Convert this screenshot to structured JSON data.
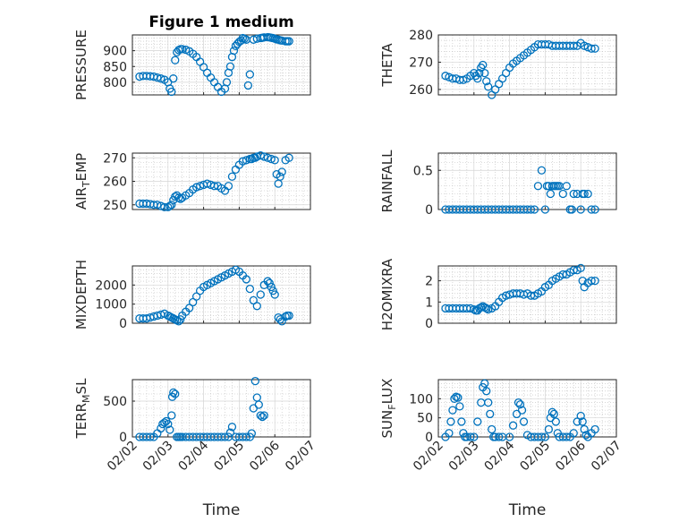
{
  "chart_data": [
    {
      "type": "scatter",
      "id": "pressure",
      "title": "Figure 1 medium",
      "ylabel": "PRESSURE",
      "xlabel": "",
      "xlim": [
        0,
        5
      ],
      "ylim": [
        760,
        950
      ],
      "yticks": [
        800,
        850,
        900
      ],
      "color": "#0072BD",
      "x": [
        0.2,
        0.3,
        0.4,
        0.5,
        0.6,
        0.7,
        0.8,
        0.9,
        1.0,
        1.05,
        1.1,
        1.15,
        1.2,
        1.25,
        1.3,
        1.35,
        1.4,
        1.5,
        1.6,
        1.7,
        1.8,
        1.9,
        2.0,
        2.1,
        2.2,
        2.3,
        2.4,
        2.5,
        2.6,
        2.65,
        2.7,
        2.75,
        2.8,
        2.85,
        2.9,
        2.95,
        3.0,
        3.05,
        3.1,
        3.15,
        3.2,
        3.25,
        3.3,
        3.4,
        3.5,
        3.6,
        3.65,
        3.7,
        3.8,
        3.85,
        3.9,
        3.95,
        4.0,
        4.05,
        4.1,
        4.15,
        4.2,
        4.3,
        4.35,
        4.4
      ],
      "y": [
        818,
        820,
        820,
        819,
        818,
        815,
        812,
        808,
        800,
        780,
        770,
        812,
        870,
        895,
        902,
        905,
        905,
        903,
        898,
        890,
        880,
        865,
        848,
        830,
        815,
        800,
        785,
        770,
        780,
        800,
        830,
        850,
        880,
        900,
        915,
        922,
        928,
        932,
        940,
        938,
        935,
        790,
        825,
        935,
        938,
        940,
        941,
        942,
        943,
        942,
        941,
        940,
        938,
        936,
        935,
        933,
        932,
        930,
        930,
        930
      ]
    },
    {
      "type": "scatter",
      "id": "theta",
      "ylabel": "THETA",
      "xlabel": "",
      "xlim": [
        0,
        5
      ],
      "ylim": [
        258,
        280
      ],
      "yticks": [
        260,
        270,
        280
      ],
      "color": "#0072BD",
      "x": [
        0.2,
        0.3,
        0.4,
        0.5,
        0.6,
        0.7,
        0.8,
        0.9,
        1.0,
        1.05,
        1.1,
        1.15,
        1.2,
        1.25,
        1.3,
        1.35,
        1.4,
        1.5,
        1.6,
        1.7,
        1.8,
        1.9,
        2.0,
        2.1,
        2.2,
        2.3,
        2.4,
        2.5,
        2.6,
        2.7,
        2.8,
        2.9,
        3.0,
        3.1,
        3.2,
        3.3,
        3.4,
        3.5,
        3.6,
        3.7,
        3.8,
        3.9,
        4.0,
        4.1,
        4.2,
        4.3,
        4.4
      ],
      "y": [
        265,
        264.5,
        264,
        264,
        263.5,
        263.5,
        264,
        265,
        266,
        265,
        264,
        266,
        268,
        269,
        266,
        263,
        261,
        258,
        260,
        262,
        264,
        266,
        268,
        269.5,
        270.5,
        271.5,
        272.5,
        273.5,
        274.5,
        275.5,
        276.5,
        276.5,
        276.5,
        276.5,
        276,
        276,
        276,
        276,
        276,
        276,
        276,
        276,
        277,
        276,
        275.5,
        275,
        275
      ]
    },
    {
      "type": "scatter",
      "id": "air_temp",
      "ylabel": "AIR_TEMP",
      "xlabel": "",
      "xlim": [
        0,
        5
      ],
      "ylim": [
        248,
        272
      ],
      "yticks": [
        250,
        260,
        270
      ],
      "color": "#0072BD",
      "x": [
        0.2,
        0.3,
        0.4,
        0.5,
        0.6,
        0.7,
        0.8,
        0.9,
        1.0,
        1.05,
        1.1,
        1.15,
        1.2,
        1.25,
        1.3,
        1.35,
        1.4,
        1.5,
        1.6,
        1.7,
        1.8,
        1.9,
        2.0,
        2.1,
        2.2,
        2.3,
        2.4,
        2.5,
        2.6,
        2.7,
        2.8,
        2.9,
        3.0,
        3.1,
        3.2,
        3.3,
        3.35,
        3.4,
        3.45,
        3.5,
        3.6,
        3.7,
        3.8,
        3.9,
        4.0,
        4.05,
        4.1,
        4.15,
        4.2,
        4.3,
        4.4
      ],
      "y": [
        250.5,
        250.5,
        250.5,
        250.3,
        250,
        250,
        249.5,
        249,
        249,
        249.5,
        250,
        252,
        253.5,
        254,
        253,
        252.5,
        253,
        254,
        255,
        256.5,
        257.5,
        258,
        258.5,
        259,
        258.5,
        258,
        258,
        257,
        256,
        258,
        262,
        265,
        267,
        268.5,
        269,
        269.5,
        269.5,
        270,
        270,
        270.5,
        271,
        270.5,
        270,
        269.5,
        269,
        263,
        259,
        262,
        264,
        269,
        270
      ]
    },
    {
      "type": "scatter",
      "id": "rainfall",
      "ylabel": "RAINFALL",
      "xlabel": "",
      "xlim": [
        0,
        5
      ],
      "ylim": [
        0,
        0.72
      ],
      "yticks": [
        0,
        0.5
      ],
      "color": "#0072BD",
      "x": [
        0.2,
        0.3,
        0.4,
        0.5,
        0.6,
        0.7,
        0.8,
        0.9,
        1.0,
        1.1,
        1.2,
        1.3,
        1.4,
        1.5,
        1.6,
        1.7,
        1.8,
        1.9,
        2.0,
        2.1,
        2.2,
        2.3,
        2.4,
        2.5,
        2.6,
        2.7,
        2.8,
        2.9,
        3.0,
        3.05,
        3.1,
        3.15,
        3.2,
        3.25,
        3.3,
        3.35,
        3.4,
        3.5,
        3.6,
        3.7,
        3.75,
        3.8,
        3.9,
        4.0,
        4.05,
        4.1,
        4.2,
        4.3,
        4.4
      ],
      "y": [
        0,
        0,
        0,
        0,
        0,
        0,
        0,
        0,
        0,
        0,
        0,
        0,
        0,
        0,
        0,
        0,
        0,
        0,
        0,
        0,
        0,
        0,
        0,
        0,
        0,
        0,
        0.3,
        0.5,
        0,
        0.3,
        0.3,
        0.2,
        0.3,
        0.3,
        0.3,
        0.3,
        0.3,
        0.2,
        0.3,
        0,
        0,
        0.2,
        0.2,
        0,
        0.2,
        0.2,
        0.2,
        0,
        0
      ]
    },
    {
      "type": "scatter",
      "id": "mixdepth",
      "ylabel": "MIXDEPTH",
      "xlabel": "",
      "xlim": [
        0,
        5
      ],
      "ylim": [
        0,
        3000
      ],
      "yticks": [
        0,
        1000,
        2000
      ],
      "color": "#0072BD",
      "x": [
        0.2,
        0.3,
        0.4,
        0.5,
        0.6,
        0.7,
        0.8,
        0.9,
        1.0,
        1.05,
        1.1,
        1.15,
        1.2,
        1.25,
        1.3,
        1.35,
        1.4,
        1.5,
        1.6,
        1.7,
        1.8,
        1.9,
        2.0,
        2.1,
        2.2,
        2.3,
        2.4,
        2.5,
        2.6,
        2.7,
        2.8,
        2.9,
        3.0,
        3.1,
        3.2,
        3.3,
        3.4,
        3.5,
        3.6,
        3.7,
        3.8,
        3.85,
        3.9,
        3.95,
        4.0,
        4.1,
        4.15,
        4.2,
        4.3,
        4.35,
        4.4
      ],
      "y": [
        250,
        250,
        250,
        300,
        350,
        400,
        450,
        500,
        400,
        350,
        300,
        250,
        200,
        150,
        100,
        200,
        400,
        600,
        800,
        1100,
        1400,
        1700,
        1900,
        2000,
        2100,
        2200,
        2300,
        2400,
        2500,
        2600,
        2700,
        2800,
        2700,
        2500,
        2300,
        1800,
        1200,
        900,
        1500,
        2000,
        2200,
        2100,
        1900,
        1700,
        1500,
        300,
        200,
        100,
        350,
        400,
        400
      ]
    },
    {
      "type": "scatter",
      "id": "h2omixra",
      "ylabel": "H2OMIXRA",
      "xlabel": "",
      "xlim": [
        0,
        5
      ],
      "ylim": [
        0,
        2.7
      ],
      "yticks": [
        0,
        1,
        2
      ],
      "color": "#0072BD",
      "x": [
        0.2,
        0.3,
        0.4,
        0.5,
        0.6,
        0.7,
        0.8,
        0.9,
        1.0,
        1.05,
        1.1,
        1.15,
        1.2,
        1.25,
        1.3,
        1.35,
        1.4,
        1.5,
        1.6,
        1.7,
        1.8,
        1.9,
        2.0,
        2.1,
        2.2,
        2.3,
        2.4,
        2.5,
        2.6,
        2.7,
        2.8,
        2.9,
        3.0,
        3.1,
        3.2,
        3.3,
        3.4,
        3.5,
        3.6,
        3.7,
        3.8,
        3.9,
        4.0,
        4.05,
        4.1,
        4.2,
        4.3,
        4.4
      ],
      "y": [
        0.7,
        0.7,
        0.7,
        0.7,
        0.7,
        0.7,
        0.7,
        0.7,
        0.65,
        0.6,
        0.6,
        0.7,
        0.75,
        0.8,
        0.75,
        0.7,
        0.65,
        0.7,
        0.8,
        1.0,
        1.2,
        1.3,
        1.35,
        1.4,
        1.4,
        1.4,
        1.35,
        1.4,
        1.3,
        1.3,
        1.4,
        1.5,
        1.7,
        1.8,
        2.0,
        2.1,
        2.2,
        2.3,
        2.3,
        2.4,
        2.5,
        2.5,
        2.6,
        2.0,
        1.7,
        1.9,
        2.0,
        2.0
      ]
    },
    {
      "type": "scatter",
      "id": "terr_msl",
      "ylabel": "TERR_MSL",
      "xlabel": "Time",
      "xlim": [
        0,
        5
      ],
      "ylim": [
        0,
        800
      ],
      "yticks": [
        0,
        500
      ],
      "xticks": [
        0,
        1,
        2,
        3,
        4,
        5
      ],
      "xticklabels": [
        "02/02",
        "02/03",
        "02/04",
        "02/05",
        "02/06",
        "02/07"
      ],
      "color": "#0072BD",
      "x": [
        0.2,
        0.3,
        0.4,
        0.5,
        0.6,
        0.7,
        0.8,
        0.85,
        0.9,
        0.95,
        1.0,
        1.05,
        1.1,
        1.12,
        1.15,
        1.2,
        1.25,
        1.3,
        1.35,
        1.4,
        1.5,
        1.6,
        1.7,
        1.8,
        1.9,
        2.0,
        2.1,
        2.2,
        2.3,
        2.4,
        2.5,
        2.6,
        2.7,
        2.75,
        2.8,
        2.9,
        3.0,
        3.1,
        3.2,
        3.3,
        3.35,
        3.4,
        3.45,
        3.5,
        3.55,
        3.6,
        3.65,
        3.7
      ],
      "y": [
        0,
        0,
        0,
        0,
        0,
        50,
        120,
        180,
        200,
        220,
        180,
        100,
        300,
        560,
        620,
        600,
        0,
        0,
        0,
        0,
        0,
        0,
        0,
        0,
        0,
        0,
        0,
        0,
        0,
        0,
        0,
        0,
        0,
        60,
        140,
        0,
        0,
        0,
        0,
        0,
        50,
        400,
        780,
        550,
        450,
        300,
        280,
        300
      ]
    },
    {
      "type": "scatter",
      "id": "sun_flux",
      "ylabel": "SUN_FLUX",
      "xlabel": "Time",
      "xlim": [
        0,
        5
      ],
      "ylim": [
        0,
        150
      ],
      "yticks": [
        0,
        50,
        100
      ],
      "xticks": [
        0,
        1,
        2,
        3,
        4,
        5
      ],
      "xticklabels": [
        "02/02",
        "02/03",
        "02/04",
        "02/05",
        "02/06",
        "02/07"
      ],
      "color": "#0072BD",
      "x": [
        0.2,
        0.3,
        0.35,
        0.4,
        0.45,
        0.5,
        0.55,
        0.6,
        0.65,
        0.7,
        0.75,
        0.8,
        0.9,
        1.0,
        1.1,
        1.2,
        1.25,
        1.3,
        1.35,
        1.4,
        1.45,
        1.5,
        1.55,
        1.6,
        1.7,
        1.8,
        2.0,
        2.1,
        2.2,
        2.25,
        2.3,
        2.35,
        2.4,
        2.5,
        2.6,
        2.7,
        2.8,
        2.9,
        3.0,
        3.1,
        3.15,
        3.2,
        3.25,
        3.3,
        3.35,
        3.4,
        3.5,
        3.6,
        3.7,
        3.8,
        3.9,
        4.0,
        4.05,
        4.1,
        4.15,
        4.2,
        4.3,
        4.4
      ],
      "y": [
        0,
        10,
        40,
        70,
        100,
        105,
        103,
        80,
        40,
        10,
        0,
        0,
        0,
        0,
        40,
        90,
        130,
        140,
        120,
        90,
        60,
        20,
        0,
        0,
        0,
        0,
        0,
        30,
        60,
        90,
        85,
        70,
        40,
        5,
        0,
        0,
        0,
        0,
        0,
        20,
        50,
        65,
        60,
        40,
        10,
        0,
        0,
        0,
        0,
        10,
        40,
        55,
        40,
        20,
        5,
        0,
        10,
        20
      ]
    }
  ]
}
